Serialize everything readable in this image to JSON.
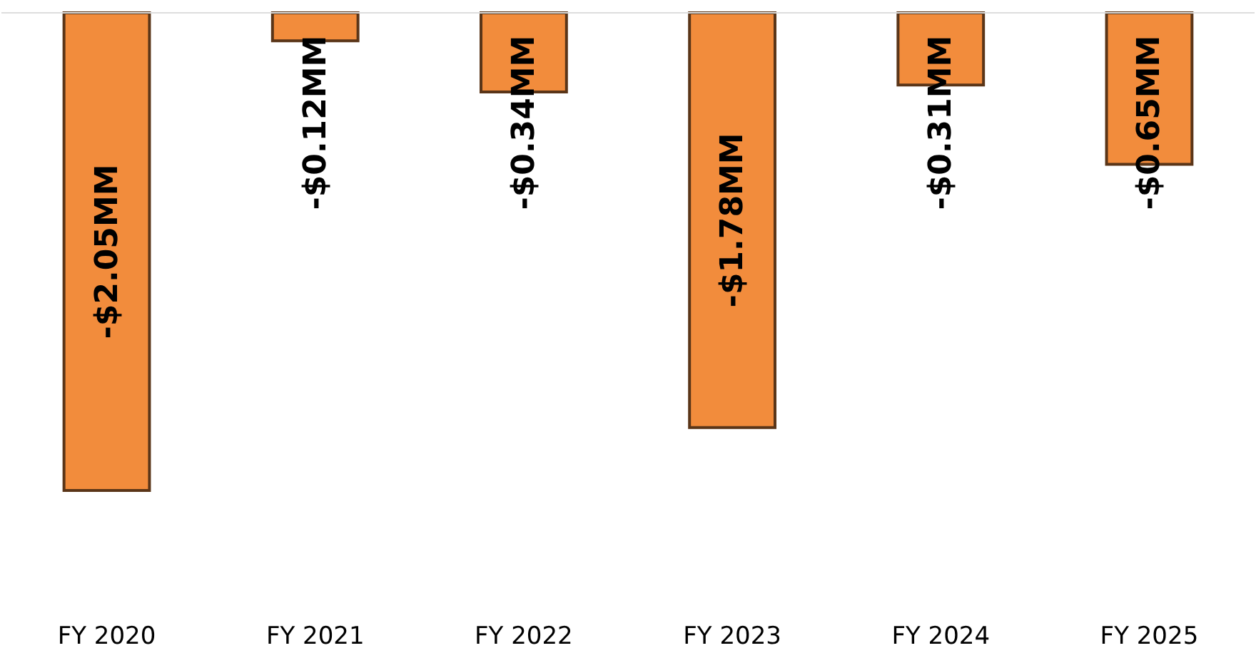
{
  "chart_data": {
    "type": "bar",
    "categories": [
      "FY 2020",
      "FY 2021",
      "FY 2022",
      "FY 2023",
      "FY 2024",
      "FY 2025"
    ],
    "values": [
      -2.05,
      -0.12,
      -0.34,
      -1.78,
      -0.31,
      -0.65
    ],
    "value_labels": [
      "-$2.05MM",
      "-$0.12MM",
      "-$0.34MM",
      "-$1.78MM",
      "-$0.31MM",
      "-$0.65MM"
    ],
    "color": "#f28c3c",
    "grid": false
  }
}
